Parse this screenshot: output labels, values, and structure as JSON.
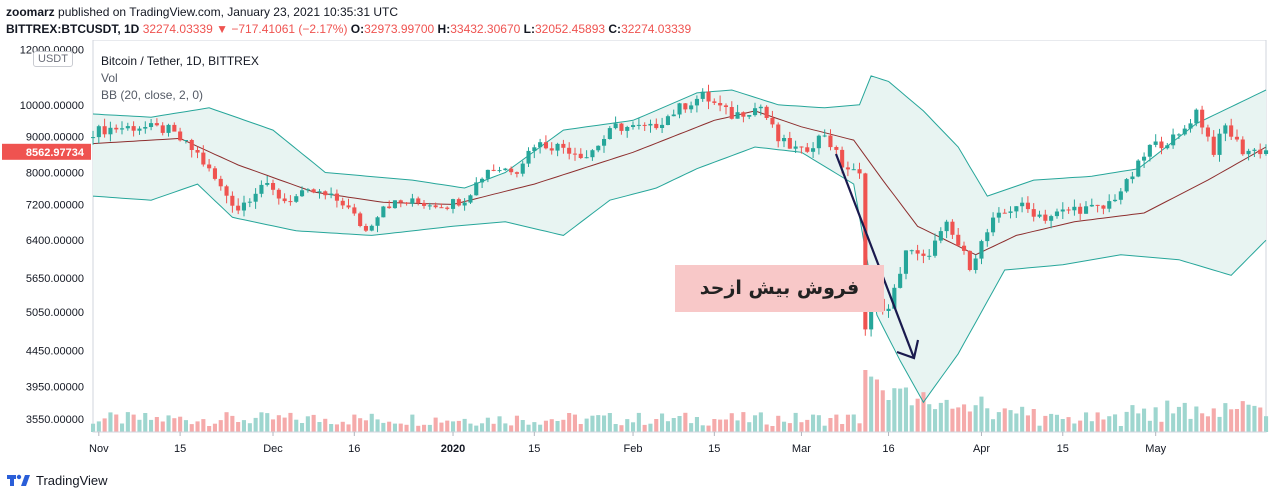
{
  "header": {
    "user": "zoomarz",
    "published_text": "published on TradingView.com, January 23, 2021 10:35:31 UTC",
    "symbol": "BITTREX:BTCUSDT, 1D",
    "last": "32274.03339",
    "change": "−717.41061 (−2.17%)",
    "open_label": "O:",
    "open": "32973.99700",
    "high_label": "H:",
    "high": "33432.30670",
    "low_label": "L:",
    "low": "32052.45893",
    "close_label": "C:",
    "close": "32274.03339"
  },
  "legend": {
    "title": "Bitcoin / Tether, 1D, BITTREX",
    "volume": "Vol",
    "bb": "BB (20, close, 2, 0)"
  },
  "currency_badge": "USDT",
  "annotation": {
    "text": "فروش بیش ازحد"
  },
  "brand": "TradingView",
  "colors": {
    "up": "#26a69a",
    "down": "#ef5350",
    "basis": "#8d2e2e",
    "band": "#26a69a",
    "band_fill": "#e8f4f2",
    "arrow": "#1a1a4e",
    "note_bg": "#f8c8c8"
  },
  "chart_data": {
    "type": "candlestick",
    "y_axis": {
      "scale": "log",
      "range": [
        3400,
        12300
      ],
      "ticks": [
        "12000.00000",
        "10000.00000",
        "9000.00000",
        "8000.00000",
        "7200.00000",
        "6400.00000",
        "5650.00000",
        "5050.00000",
        "4450.00000",
        "3950.00000",
        "3550.00000"
      ],
      "current_price_label": "8562.97734"
    },
    "x_axis": {
      "start_date": "2019-10-31",
      "end_date": "2020-05-20",
      "ticks": [
        {
          "date": "2019-11-01",
          "label": "Nov",
          "bold": false
        },
        {
          "date": "2019-11-15",
          "label": "15",
          "bold": false
        },
        {
          "date": "2019-12-01",
          "label": "Dec",
          "bold": false
        },
        {
          "date": "2019-12-15",
          "label": "16",
          "bold": false
        },
        {
          "date": "2020-01-01",
          "label": "2020",
          "bold": true
        },
        {
          "date": "2020-01-15",
          "label": "15",
          "bold": false
        },
        {
          "date": "2020-02-01",
          "label": "Feb",
          "bold": false
        },
        {
          "date": "2020-02-15",
          "label": "15",
          "bold": false
        },
        {
          "date": "2020-03-01",
          "label": "Mar",
          "bold": false
        },
        {
          "date": "2020-03-16",
          "label": "16",
          "bold": false
        },
        {
          "date": "2020-04-01",
          "label": "Apr",
          "bold": false
        },
        {
          "date": "2020-04-15",
          "label": "15",
          "bold": false
        },
        {
          "date": "2020-05-01",
          "label": "May",
          "bold": false
        }
      ]
    },
    "close_path": [
      [
        "2019-10-31",
        9150
      ],
      [
        "2019-11-03",
        9250
      ],
      [
        "2019-11-08",
        9300
      ],
      [
        "2019-11-13",
        9200
      ],
      [
        "2019-11-18",
        8500
      ],
      [
        "2019-11-22",
        7600
      ],
      [
        "2019-11-25",
        7100
      ],
      [
        "2019-11-29",
        7700
      ],
      [
        "2019-12-03",
        7300
      ],
      [
        "2019-12-08",
        7500
      ],
      [
        "2019-12-13",
        7250
      ],
      [
        "2019-12-17",
        6600
      ],
      [
        "2019-12-20",
        7200
      ],
      [
        "2019-12-25",
        7250
      ],
      [
        "2019-12-31",
        7200
      ],
      [
        "2020-01-03",
        7350
      ],
      [
        "2020-01-07",
        8100
      ],
      [
        "2020-01-12",
        8100
      ],
      [
        "2020-01-15",
        8800
      ],
      [
        "2020-01-20",
        8700
      ],
      [
        "2020-01-24",
        8450
      ],
      [
        "2020-01-29",
        9300
      ],
      [
        "2020-02-04",
        9250
      ],
      [
        "2020-02-09",
        9900
      ],
      [
        "2020-02-13",
        10300
      ],
      [
        "2020-02-18",
        9650
      ],
      [
        "2020-02-23",
        9950
      ],
      [
        "2020-02-26",
        8900
      ],
      [
        "2020-03-01",
        8550
      ],
      [
        "2020-03-05",
        9100
      ],
      [
        "2020-03-08",
        8200
      ],
      [
        "2020-03-11",
        7900
      ],
      [
        "2020-03-12",
        4850
      ],
      [
        "2020-03-13",
        5300
      ],
      [
        "2020-03-16",
        5050
      ],
      [
        "2020-03-19",
        6200
      ],
      [
        "2020-03-22",
        6000
      ],
      [
        "2020-03-26",
        6700
      ],
      [
        "2020-03-30",
        5900
      ],
      [
        "2020-04-03",
        6800
      ],
      [
        "2020-04-07",
        7200
      ],
      [
        "2020-04-12",
        6900
      ],
      [
        "2020-04-17",
        7100
      ],
      [
        "2020-04-22",
        7100
      ],
      [
        "2020-04-26",
        7700
      ],
      [
        "2020-04-30",
        8700
      ],
      [
        "2020-05-05",
        9000
      ],
      [
        "2020-05-08",
        9800
      ],
      [
        "2020-05-11",
        8600
      ],
      [
        "2020-05-13",
        9300
      ],
      [
        "2020-05-16",
        8600
      ]
    ],
    "bollinger_basis": [
      [
        "2019-10-31",
        8800
      ],
      [
        "2019-11-15",
        8950
      ],
      [
        "2019-11-25",
        8200
      ],
      [
        "2019-12-08",
        7500
      ],
      [
        "2019-12-20",
        7250
      ],
      [
        "2020-01-01",
        7200
      ],
      [
        "2020-01-15",
        7700
      ],
      [
        "2020-02-01",
        8550
      ],
      [
        "2020-02-15",
        9500
      ],
      [
        "2020-02-22",
        9800
      ],
      [
        "2020-03-01",
        9300
      ],
      [
        "2020-03-10",
        8900
      ],
      [
        "2020-03-15",
        7800
      ],
      [
        "2020-03-21",
        6700
      ],
      [
        "2020-03-31",
        6100
      ],
      [
        "2020-04-07",
        6500
      ],
      [
        "2020-04-17",
        6800
      ],
      [
        "2020-04-29",
        7000
      ],
      [
        "2020-05-10",
        7800
      ],
      [
        "2020-05-20",
        8700
      ]
    ],
    "bollinger_upper": [
      [
        "2019-10-31",
        9700
      ],
      [
        "2019-11-10",
        9600
      ],
      [
        "2019-11-20",
        9900
      ],
      [
        "2019-12-01",
        9200
      ],
      [
        "2019-12-10",
        8000
      ],
      [
        "2019-12-25",
        7800
      ],
      [
        "2020-01-03",
        7600
      ],
      [
        "2020-01-10",
        8000
      ],
      [
        "2020-01-20",
        9200
      ],
      [
        "2020-02-01",
        9500
      ],
      [
        "2020-02-12",
        10400
      ],
      [
        "2020-02-18",
        10500
      ],
      [
        "2020-02-26",
        10000
      ],
      [
        "2020-03-05",
        9900
      ],
      [
        "2020-03-11",
        10000
      ],
      [
        "2020-03-13",
        11000
      ],
      [
        "2020-03-16",
        10800
      ],
      [
        "2020-03-22",
        9800
      ],
      [
        "2020-03-28",
        8700
      ],
      [
        "2020-04-02",
        7400
      ],
      [
        "2020-04-10",
        7800
      ],
      [
        "2020-04-20",
        7900
      ],
      [
        "2020-04-28",
        8100
      ],
      [
        "2020-05-08",
        9400
      ],
      [
        "2020-05-20",
        10500
      ]
    ],
    "bollinger_lower": [
      [
        "2019-10-31",
        7400
      ],
      [
        "2019-11-10",
        7300
      ],
      [
        "2019-11-18",
        7700
      ],
      [
        "2019-11-24",
        6900
      ],
      [
        "2019-12-05",
        6600
      ],
      [
        "2019-12-18",
        6500
      ],
      [
        "2020-01-01",
        6700
      ],
      [
        "2020-01-10",
        6800
      ],
      [
        "2020-01-20",
        6500
      ],
      [
        "2020-01-28",
        7300
      ],
      [
        "2020-02-05",
        7600
      ],
      [
        "2020-02-12",
        8100
      ],
      [
        "2020-02-22",
        8700
      ],
      [
        "2020-03-01",
        8550
      ],
      [
        "2020-03-10",
        7700
      ],
      [
        "2020-03-14",
        5000
      ],
      [
        "2020-03-18",
        4300
      ],
      [
        "2020-03-22",
        3750
      ],
      [
        "2020-03-28",
        4400
      ],
      [
        "2020-04-05",
        5800
      ],
      [
        "2020-04-15",
        5900
      ],
      [
        "2020-04-25",
        6100
      ],
      [
        "2020-05-05",
        6000
      ],
      [
        "2020-05-14",
        5700
      ],
      [
        "2020-05-20",
        6400
      ]
    ]
  }
}
